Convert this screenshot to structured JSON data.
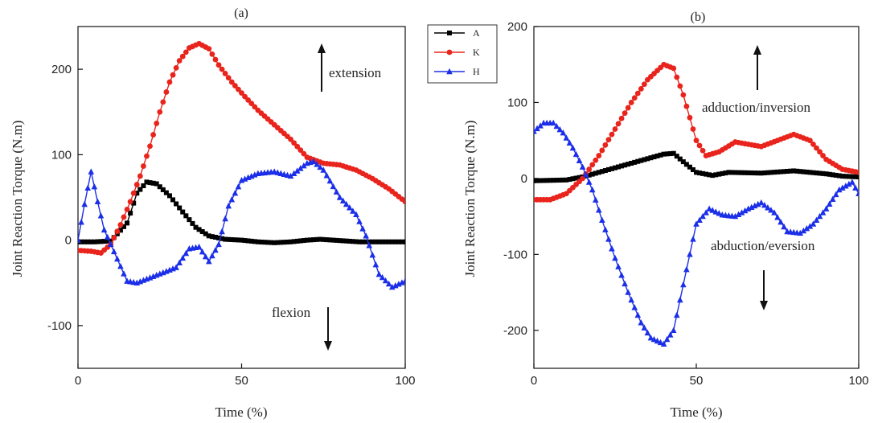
{
  "chart_data": [
    {
      "type": "line",
      "title": "(a)",
      "xlabel": "Time (%)",
      "ylabel": "Joint Reaction Torque (N.m)",
      "xlim": [
        0,
        100
      ],
      "ylim": [
        -150,
        250
      ],
      "xticks": [
        0,
        50,
        100
      ],
      "yticks": [
        -100,
        0,
        100,
        200
      ],
      "annotations": [
        {
          "text": "extension",
          "arrow": "up"
        },
        {
          "text": "flexion",
          "arrow": "down"
        }
      ],
      "series": [
        {
          "name": "A",
          "color": "#000000",
          "marker": "square",
          "x": [
            0,
            5,
            10,
            15,
            18,
            21,
            24,
            28,
            32,
            36,
            40,
            45,
            50,
            55,
            60,
            65,
            70,
            74,
            78,
            82,
            86,
            90,
            95,
            100
          ],
          "y": [
            -2,
            -2,
            -1,
            20,
            55,
            68,
            66,
            52,
            33,
            15,
            5,
            1,
            0,
            -2,
            -3,
            -2,
            0,
            1,
            0,
            -1,
            -2,
            -2,
            -2,
            -2
          ]
        },
        {
          "name": "K",
          "color": "#e8241c",
          "marker": "circle",
          "x": [
            0,
            4,
            7,
            10,
            13,
            16,
            19,
            22,
            25,
            28,
            31,
            34,
            37,
            40,
            43,
            47,
            51,
            55,
            60,
            65,
            70,
            75,
            80,
            85,
            90,
            95,
            100
          ],
          "y": [
            -12,
            -13,
            -15,
            -5,
            18,
            45,
            75,
            110,
            150,
            185,
            210,
            225,
            230,
            224,
            205,
            185,
            168,
            152,
            135,
            118,
            97,
            90,
            88,
            82,
            72,
            60,
            45
          ]
        },
        {
          "name": "H",
          "color": "#1c2fe8",
          "marker": "triangle",
          "x": [
            0,
            2,
            4,
            6,
            8,
            10,
            12,
            15,
            18,
            22,
            26,
            30,
            34,
            37,
            40,
            43,
            46,
            50,
            55,
            60,
            65,
            70,
            72,
            75,
            80,
            85,
            88,
            92,
            96,
            100
          ],
          "y": [
            0,
            42,
            80,
            45,
            12,
            -5,
            -22,
            -48,
            -50,
            -44,
            -38,
            -32,
            -10,
            -8,
            -25,
            -5,
            40,
            70,
            78,
            80,
            75,
            90,
            92,
            82,
            50,
            30,
            5,
            -40,
            -55,
            -48
          ]
        }
      ]
    },
    {
      "type": "line",
      "title": "(b)",
      "xlabel": "Time (%)",
      "ylabel": "Joint Reaction Torque (N.m)",
      "xlim": [
        0,
        100
      ],
      "ylim": [
        -250,
        200
      ],
      "xticks": [
        0,
        50,
        100
      ],
      "yticks": [
        -200,
        -100,
        0,
        100,
        200
      ],
      "annotations": [
        {
          "text": "adduction/inversion",
          "arrow": "up"
        },
        {
          "text": "abduction/eversion",
          "arrow": "down"
        }
      ],
      "series": [
        {
          "name": "A",
          "color": "#000000",
          "marker": "square",
          "x": [
            0,
            10,
            15,
            20,
            25,
            30,
            35,
            40,
            43,
            46,
            50,
            55,
            60,
            70,
            80,
            90,
            95,
            100
          ],
          "y": [
            -3,
            -2,
            2,
            8,
            14,
            20,
            26,
            32,
            33,
            22,
            8,
            4,
            8,
            7,
            10,
            6,
            3,
            2
          ]
        },
        {
          "name": "K",
          "color": "#e8241c",
          "marker": "circle",
          "x": [
            0,
            5,
            10,
            15,
            20,
            25,
            30,
            35,
            40,
            43,
            46,
            50,
            53,
            57,
            62,
            66,
            70,
            75,
            80,
            85,
            90,
            95,
            100
          ],
          "y": [
            -28,
            -28,
            -20,
            0,
            30,
            65,
            100,
            130,
            150,
            145,
            110,
            50,
            30,
            35,
            48,
            45,
            42,
            50,
            58,
            50,
            25,
            12,
            8
          ]
        },
        {
          "name": "H",
          "color": "#1c2fe8",
          "marker": "triangle",
          "x": [
            0,
            3,
            6,
            9,
            12,
            15,
            18,
            21,
            25,
            29,
            33,
            36,
            40,
            43,
            46,
            50,
            54,
            58,
            62,
            66,
            70,
            74,
            78,
            82,
            86,
            90,
            94,
            98,
            100
          ],
          "y": [
            62,
            73,
            73,
            60,
            40,
            15,
            -15,
            -55,
            -105,
            -150,
            -190,
            -210,
            -218,
            -200,
            -140,
            -60,
            -40,
            -48,
            -50,
            -40,
            -32,
            -45,
            -70,
            -72,
            -60,
            -40,
            -15,
            -5,
            -20
          ]
        }
      ]
    }
  ],
  "legend": [
    {
      "name": "A",
      "color": "#000000",
      "marker": "square"
    },
    {
      "name": "K",
      "color": "#e8241c",
      "marker": "circle"
    },
    {
      "name": "H",
      "color": "#1c2fe8",
      "marker": "triangle"
    }
  ]
}
